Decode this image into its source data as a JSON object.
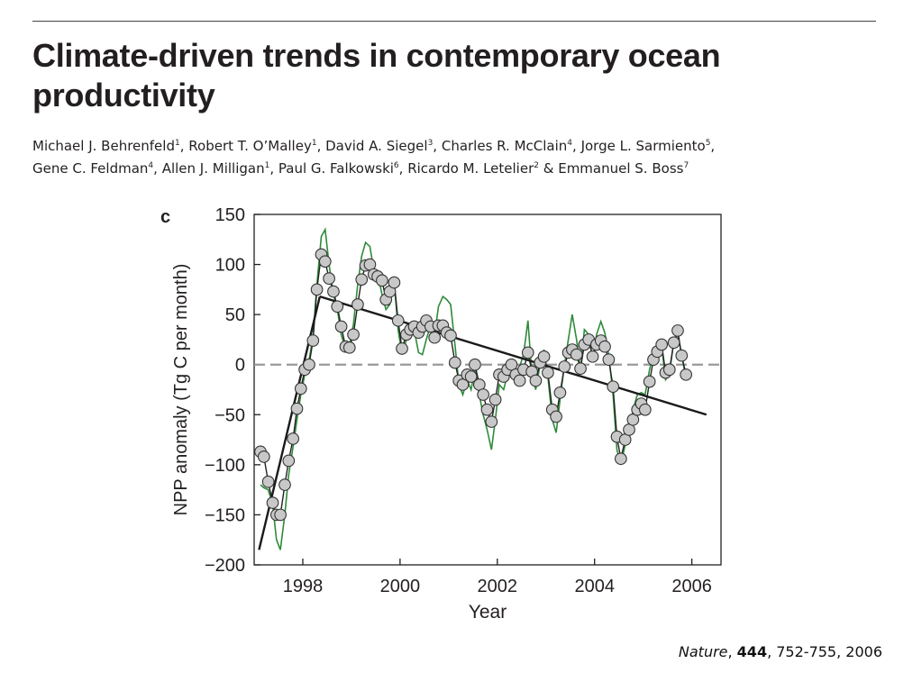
{
  "paper": {
    "title": "Climate-driven trends in contemporary ocean productivity",
    "authors": [
      {
        "name": "Michael J. Behrenfeld",
        "aff": "1"
      },
      {
        "name": "Robert T. O’Malley",
        "aff": "1"
      },
      {
        "name": "David A. Siegel",
        "aff": "3"
      },
      {
        "name": "Charles R. McClain",
        "aff": "4"
      },
      {
        "name": "Jorge L. Sarmiento",
        "aff": "5"
      },
      {
        "name": "Gene C. Feldman",
        "aff": "4"
      },
      {
        "name": "Allen J. Milligan",
        "aff": "1"
      },
      {
        "name": "Paul G. Falkowski",
        "aff": "6"
      },
      {
        "name": "Ricardo M. Letelier",
        "aff": "2"
      },
      {
        "name": "Emmanuel S. Boss",
        "aff": "7"
      }
    ]
  },
  "citation": {
    "journal": "Nature",
    "volume": "444",
    "pages": "752-755, 2006"
  },
  "colors": {
    "text": "#231f20",
    "green_line": "#2e8b3a",
    "marker_fill": "#c8c8c8",
    "dashed": "#999999"
  },
  "chart_data": {
    "type": "line",
    "panel_label": "c",
    "title": "",
    "xlabel": "Year",
    "ylabel": "NPP anomaly (Tg C per month)",
    "xlim": [
      1997.0,
      2006.6
    ],
    "ylim": [
      -200,
      150
    ],
    "xticks": [
      1998,
      2000,
      2002,
      2004,
      2006
    ],
    "yticks": [
      -200,
      -150,
      -100,
      -50,
      0,
      50,
      100,
      150
    ],
    "reference_line": {
      "y": 0,
      "style": "dashed"
    },
    "series": [
      {
        "style": "circles-with-black-line",
        "x": [
          1997.13,
          1997.2,
          1997.29,
          1997.38,
          1997.46,
          1997.54,
          1997.63,
          1997.71,
          1997.8,
          1997.88,
          1997.96,
          1998.04,
          1998.13,
          1998.21,
          1998.29,
          1998.38,
          1998.46,
          1998.54,
          1998.63,
          1998.71,
          1998.79,
          1998.88,
          1998.96,
          1999.04,
          1999.13,
          1999.21,
          1999.29,
          1999.38,
          1999.46,
          1999.54,
          1999.63,
          1999.71,
          1999.79,
          1999.88,
          1999.96,
          2000.04,
          2000.13,
          2000.21,
          2000.29,
          2000.38,
          2000.46,
          2000.54,
          2000.63,
          2000.71,
          2000.79,
          2000.88,
          2000.96,
          2001.04,
          2001.13,
          2001.21,
          2001.29,
          2001.38,
          2001.46,
          2001.54,
          2001.63,
          2001.71,
          2001.79,
          2001.88,
          2001.96,
          2002.04,
          2002.13,
          2002.21,
          2002.29,
          2002.38,
          2002.46,
          2002.54,
          2002.63,
          2002.71,
          2002.79,
          2002.88,
          2002.96,
          2003.04,
          2003.13,
          2003.21,
          2003.29,
          2003.38,
          2003.46,
          2003.54,
          2003.63,
          2003.71,
          2003.79,
          2003.88,
          2003.96,
          2004.04,
          2004.13,
          2004.21,
          2004.29,
          2004.38,
          2004.46,
          2004.54,
          2004.63,
          2004.71,
          2004.79,
          2004.88,
          2004.96,
          2005.04,
          2005.13,
          2005.21,
          2005.29,
          2005.38,
          2005.46,
          2005.54,
          2005.63,
          2005.71,
          2005.79,
          2005.88
        ],
        "y": [
          -87,
          -92,
          -117,
          -138,
          -150,
          -150,
          -120,
          -96,
          -74,
          -44,
          -24,
          -5,
          0,
          24,
          75,
          110,
          103,
          86,
          73,
          58,
          38,
          18,
          17,
          30,
          60,
          85,
          99,
          100,
          90,
          88,
          84,
          65,
          73,
          82,
          44,
          16,
          30,
          35,
          38,
          32,
          38,
          44,
          38,
          27,
          39,
          39,
          32,
          29,
          2,
          -16,
          -20,
          -10,
          -12,
          0,
          -20,
          -30,
          -45,
          -57,
          -35,
          -10,
          -12,
          -5,
          0,
          -10,
          -16,
          -5,
          12,
          -7,
          -16,
          2,
          8,
          -8,
          -45,
          -52,
          -28,
          -2,
          12,
          15,
          10,
          -4,
          20,
          25,
          8,
          20,
          24,
          18,
          5,
          -22,
          -72,
          -94,
          -75,
          -65,
          -55,
          -45,
          -39,
          -45,
          -17,
          5,
          13,
          20,
          -8,
          -5,
          22,
          34,
          9,
          -10
        ]
      },
      {
        "style": "green-line",
        "x": [
          1997.13,
          1997.2,
          1997.29,
          1997.38,
          1997.46,
          1997.54,
          1997.63,
          1997.71,
          1997.8,
          1997.88,
          1997.96,
          1998.04,
          1998.13,
          1998.21,
          1998.29,
          1998.38,
          1998.46,
          1998.54,
          1998.63,
          1998.71,
          1998.79,
          1998.88,
          1998.96,
          1999.04,
          1999.13,
          1999.21,
          1999.29,
          1999.38,
          1999.46,
          1999.54,
          1999.63,
          1999.71,
          1999.79,
          1999.88,
          1999.96,
          2000.04,
          2000.13,
          2000.21,
          2000.29,
          2000.38,
          2000.46,
          2000.54,
          2000.63,
          2000.71,
          2000.79,
          2000.88,
          2000.96,
          2001.04,
          2001.13,
          2001.21,
          2001.29,
          2001.38,
          2001.46,
          2001.54,
          2001.63,
          2001.71,
          2001.79,
          2001.88,
          2001.96,
          2002.04,
          2002.13,
          2002.21,
          2002.29,
          2002.38,
          2002.46,
          2002.54,
          2002.63,
          2002.71,
          2002.79,
          2002.88,
          2002.96,
          2003.04,
          2003.13,
          2003.21,
          2003.29,
          2003.38,
          2003.46,
          2003.54,
          2003.63,
          2003.71,
          2003.79,
          2003.88,
          2003.96,
          2004.04,
          2004.13,
          2004.21,
          2004.29,
          2004.38,
          2004.46,
          2004.54,
          2004.63,
          2004.71,
          2004.79,
          2004.88,
          2004.96,
          2005.04,
          2005.13,
          2005.21,
          2005.29,
          2005.38,
          2005.46,
          2005.54,
          2005.63,
          2005.71,
          2005.79,
          2005.88
        ],
        "y": [
          -120,
          -123,
          -125,
          -140,
          -175,
          -185,
          -150,
          -110,
          -82,
          -55,
          -30,
          -10,
          5,
          28,
          80,
          128,
          135,
          100,
          70,
          55,
          30,
          15,
          20,
          40,
          80,
          108,
          122,
          118,
          95,
          90,
          70,
          55,
          60,
          82,
          35,
          10,
          25,
          30,
          35,
          12,
          10,
          25,
          40,
          30,
          58,
          68,
          65,
          60,
          20,
          -20,
          -30,
          -15,
          -25,
          -5,
          -30,
          -50,
          -65,
          -85,
          -55,
          -20,
          -25,
          -10,
          0,
          -12,
          -2,
          10,
          44,
          -10,
          -25,
          0,
          15,
          -12,
          -55,
          -68,
          -35,
          0,
          25,
          50,
          25,
          -5,
          35,
          30,
          5,
          30,
          43,
          32,
          10,
          -30,
          -85,
          -100,
          -80,
          -75,
          -45,
          -30,
          -28,
          -30,
          -5,
          10,
          20,
          18,
          -15,
          -10,
          25,
          30,
          10,
          -15
        ]
      },
      {
        "style": "trend-line",
        "segments": [
          {
            "x": [
              1997.1,
              1998.35
            ],
            "y": [
              -185,
              68
            ]
          },
          {
            "x": [
              1998.35,
              2006.3
            ],
            "y": [
              68,
              -50
            ]
          }
        ]
      }
    ]
  }
}
